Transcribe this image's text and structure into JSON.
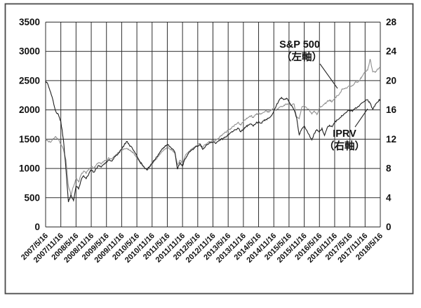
{
  "figure": {
    "border_color": "#4a4a4a",
    "background": "#ffffff"
  },
  "annotations": {
    "sp500_label_line1": "S&P 500",
    "sp500_label_line2": "（左軸）",
    "iprv_label_line1": "IPRV",
    "iprv_label_line2": "（右軸）"
  },
  "chart_data": {
    "type": "line",
    "title": "",
    "xlabel": "",
    "ylabel_left": "",
    "ylabel_right": "",
    "grid": true,
    "legend_position": "inline-annotations",
    "left_axis": {
      "min": 0,
      "max": 3500,
      "ticks": [
        3500,
        3000,
        2500,
        2000,
        1500,
        1000,
        500,
        0
      ]
    },
    "right_axis": {
      "min": 0,
      "max": 28,
      "ticks": [
        28,
        24,
        20,
        16,
        12,
        8,
        4,
        0
      ]
    },
    "x_tick_labels": [
      "2007/5/16",
      "2007/11/16",
      "2008/5/16",
      "2008/11/16",
      "2009/5/16",
      "2009/11/16",
      "2010/5/16",
      "2010/11/16",
      "2011/5/16",
      "2011/11/16",
      "2012/5/16",
      "2012/11/16",
      "2013/5/16",
      "2013/11/16",
      "2014/5/16",
      "2014/11/16",
      "2015/5/16",
      "2015/11/16",
      "2016/5/16",
      "2016/11/16",
      "2017/5/16",
      "2017/11/16",
      "2018/5/16"
    ],
    "series": [
      {
        "name": "S&P 500",
        "axis": "left",
        "color": "#8f8f8f",
        "values": [
          1500,
          1470,
          1445,
          1510,
          1545,
          1495,
          1420,
          1330,
          1150,
          700,
          555,
          690,
          830,
          770,
          890,
          955,
          915,
          985,
          1030,
          1000,
          1060,
          1100,
          1075,
          1120,
          1150,
          1180,
          1160,
          1210,
          1240,
          1280,
          1310,
          1330,
          1345,
          1310,
          1290,
          1240,
          1180,
          1120,
          1060,
          1010,
          975,
          1030,
          1080,
          1130,
          1180,
          1240,
          1290,
          1330,
          1360,
          1330,
          1310,
          1260,
          1060,
          1140,
          1090,
          1210,
          1270,
          1310,
          1340,
          1370,
          1400,
          1420,
          1360,
          1410,
          1440,
          1460,
          1480,
          1470,
          1510,
          1550,
          1590,
          1620,
          1650,
          1680,
          1720,
          1750,
          1790,
          1740,
          1800,
          1840,
          1870,
          1900,
          1870,
          1920,
          1950,
          1930,
          1960,
          1990,
          1960,
          2000,
          2020,
          1990,
          2040,
          2060,
          2080,
          2100,
          2110,
          2080,
          2100,
          1870,
          1850,
          2040,
          2070,
          2030,
          2000,
          1930,
          1980,
          1920,
          2040,
          2060,
          2100,
          2140,
          2170,
          2140,
          2200,
          2240,
          2280,
          2360,
          2360,
          2380,
          2410,
          2420,
          2470,
          2470,
          2520,
          2580,
          2650,
          2680,
          2870,
          2650,
          2640,
          2700,
          2730
        ]
      },
      {
        "name": "IPRV",
        "axis": "right",
        "color": "#1f1f1f",
        "values": [
          20.0,
          19.4,
          18.4,
          17.2,
          15.8,
          15.4,
          14.4,
          12.0,
          8.0,
          3.4,
          4.4,
          3.6,
          5.6,
          5.2,
          6.4,
          7.0,
          6.6,
          7.2,
          7.8,
          7.5,
          8.0,
          8.4,
          8.2,
          8.6,
          8.9,
          9.2,
          9.0,
          9.5,
          9.8,
          10.2,
          10.6,
          11.2,
          11.7,
          11.2,
          10.9,
          10.3,
          9.7,
          9.0,
          8.6,
          8.1,
          7.8,
          8.3,
          8.7,
          9.2,
          9.6,
          10.2,
          10.7,
          11.0,
          11.3,
          11.0,
          10.7,
          10.2,
          7.9,
          8.8,
          8.3,
          9.3,
          9.9,
          10.3,
          10.6,
          10.9,
          11.1,
          11.3,
          10.6,
          11.0,
          11.3,
          11.5,
          11.6,
          11.4,
          11.7,
          11.9,
          12.1,
          12.3,
          12.6,
          12.9,
          13.1,
          13.3,
          13.5,
          13.0,
          13.4,
          13.7,
          13.9,
          14.1,
          13.8,
          14.2,
          14.4,
          14.2,
          14.5,
          14.7,
          14.9,
          15.2,
          15.8,
          16.6,
          17.3,
          17.7,
          17.4,
          17.6,
          17.1,
          16.6,
          16.0,
          14.9,
          12.6,
          13.4,
          13.8,
          13.2,
          12.6,
          11.9,
          12.8,
          13.3,
          13.0,
          13.5,
          12.5,
          13.5,
          13.9,
          13.7,
          14.3,
          14.6,
          14.9,
          15.2,
          15.5,
          15.8,
          16.0,
          15.8,
          16.2,
          16.4,
          16.7,
          17.0,
          17.2,
          17.4,
          16.9,
          16.1,
          16.7,
          17.1,
          17.5
        ]
      }
    ]
  }
}
